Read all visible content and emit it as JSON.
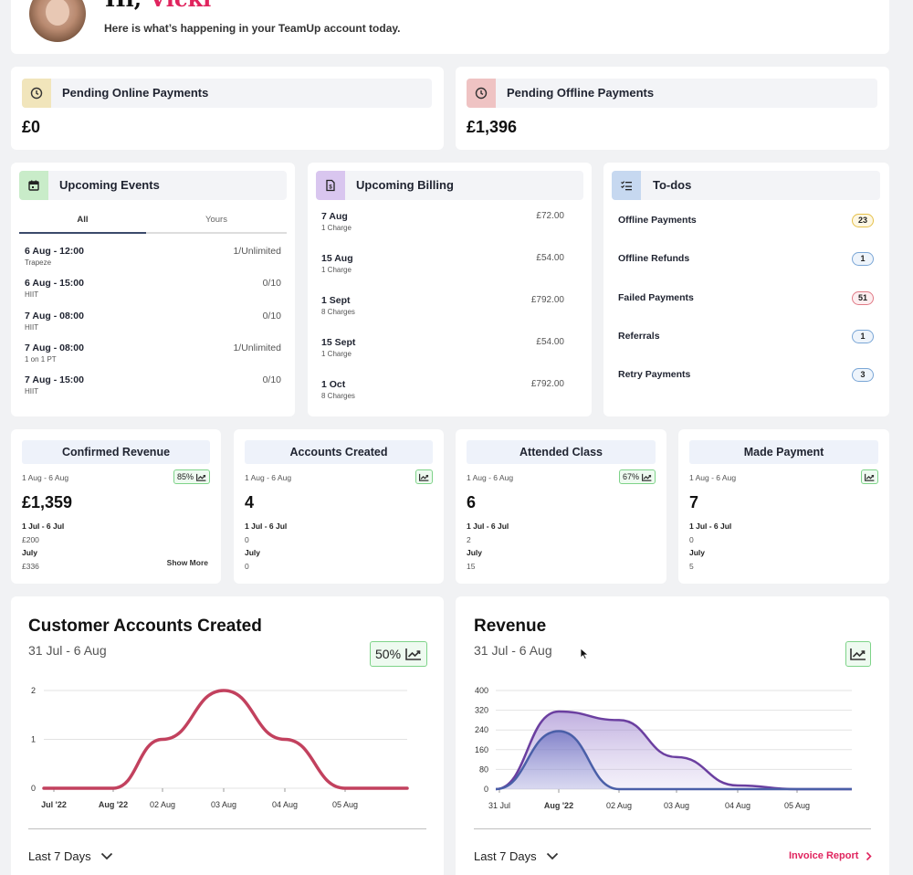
{
  "greeting": {
    "hi": "Hi,",
    "name": "Vicki",
    "subtitle": "Here is what’s happening in your TeamUp account today."
  },
  "pending": {
    "online": {
      "title": "Pending Online Payments",
      "value": "£0"
    },
    "offline": {
      "title": "Pending Offline Payments",
      "value": "£1,396"
    }
  },
  "events": {
    "title": "Upcoming Events",
    "tabs": [
      "All",
      "Yours"
    ],
    "items": [
      {
        "time": "6 Aug - 12:00",
        "name": "Trapeze",
        "cap": "1/Unlimited"
      },
      {
        "time": "6 Aug - 15:00",
        "name": "HIIT",
        "cap": "0/10"
      },
      {
        "time": "7 Aug - 08:00",
        "name": "HIIT",
        "cap": "0/10"
      },
      {
        "time": "7 Aug - 08:00",
        "name": "1 on 1 PT",
        "cap": "1/Unlimited"
      },
      {
        "time": "7 Aug - 15:00",
        "name": "HIIT",
        "cap": "0/10"
      }
    ]
  },
  "billing": {
    "title": "Upcoming Billing",
    "items": [
      {
        "date": "7 Aug",
        "charges": "1 Charge",
        "amount": "£72.00"
      },
      {
        "date": "15 Aug",
        "charges": "1 Charge",
        "amount": "£54.00"
      },
      {
        "date": "1 Sept",
        "charges": "8 Charges",
        "amount": "£792.00"
      },
      {
        "date": "15 Sept",
        "charges": "1 Charge",
        "amount": "£54.00"
      },
      {
        "date": "1 Oct",
        "charges": "8 Charges",
        "amount": "£792.00"
      }
    ]
  },
  "todos": {
    "title": "To-dos",
    "items": [
      {
        "label": "Offline Payments",
        "count": "23",
        "color": "#e6c14a",
        "bg": "#fdf7e3"
      },
      {
        "label": "Offline Refunds",
        "count": "1",
        "color": "#7aa6d6",
        "bg": "#eef4fb"
      },
      {
        "label": "Failed Payments",
        "count": "51",
        "color": "#e07a86",
        "bg": "#fdeef0"
      },
      {
        "label": "Referrals",
        "count": "1",
        "color": "#7aa6d6",
        "bg": "#eef4fb"
      },
      {
        "label": "Retry Payments",
        "count": "3",
        "color": "#7aa6d6",
        "bg": "#eef4fb"
      }
    ]
  },
  "stats": [
    {
      "title": "Confirmed Revenue",
      "range": "1 Aug - 6 Aug",
      "trend": "85%",
      "value": "£1,359",
      "p1_label": "1 Jul - 6 Jul",
      "p1_value": "£200",
      "p2_label": "July",
      "p2_value": "£336",
      "more": "Show More"
    },
    {
      "title": "Accounts Created",
      "range": "1 Aug - 6 Aug",
      "trend": "",
      "value": "4",
      "p1_label": "1 Jul - 6 Jul",
      "p1_value": "0",
      "p2_label": "July",
      "p2_value": "0",
      "more": ""
    },
    {
      "title": "Attended Class",
      "range": "1 Aug - 6 Aug",
      "trend": "67%",
      "value": "6",
      "p1_label": "1 Jul - 6 Jul",
      "p1_value": "2",
      "p2_label": "July",
      "p2_value": "15",
      "more": ""
    },
    {
      "title": "Made Payment",
      "range": "1 Aug - 6 Aug",
      "trend": "",
      "value": "7",
      "p1_label": "1 Jul - 6 Jul",
      "p1_value": "0",
      "p2_label": "July",
      "p2_value": "5",
      "more": ""
    }
  ],
  "accounts_chart": {
    "title": "Customer Accounts Created",
    "range": "31 Jul - 6 Aug",
    "trend": "50%",
    "period": "Last 7 Days"
  },
  "revenue_chart": {
    "title": "Revenue",
    "range": "31 Jul - 6 Aug",
    "period": "Last 7 Days",
    "link": "Invoice Report"
  },
  "colors": {
    "accent": "#e0245e",
    "accounts_line": "#c2415e",
    "revenue_purple": "#6b3fa0",
    "revenue_blue": "#4a5fa8",
    "trend_green": "#7ed389"
  },
  "chart_data": [
    {
      "type": "line",
      "title": "Customer Accounts Created",
      "x": [
        "Jul '22",
        "Aug '22",
        "02 Aug",
        "03 Aug",
        "04 Aug",
        "05 Aug"
      ],
      "series": [
        {
          "x": [
            "Jul '22",
            "Aug '22",
            "02 Aug",
            "03 Aug",
            "04 Aug",
            "05 Aug"
          ],
          "values": [
            0,
            0,
            1,
            2,
            1,
            0
          ]
        }
      ],
      "ylim": [
        0,
        2
      ],
      "yticks": [
        0,
        1,
        2
      ],
      "grid": true
    },
    {
      "type": "area",
      "title": "Revenue",
      "x": [
        "31 Jul",
        "Aug '22",
        "02 Aug",
        "03 Aug",
        "04 Aug",
        "05 Aug"
      ],
      "series": [
        {
          "values": [
            0,
            315,
            280,
            130,
            15,
            0
          ]
        },
        {
          "values": [
            0,
            235,
            0,
            0,
            0,
            0
          ]
        }
      ],
      "ylim": [
        0,
        400
      ],
      "yticks": [
        0,
        80,
        160,
        240,
        320,
        400
      ],
      "grid": true
    }
  ]
}
